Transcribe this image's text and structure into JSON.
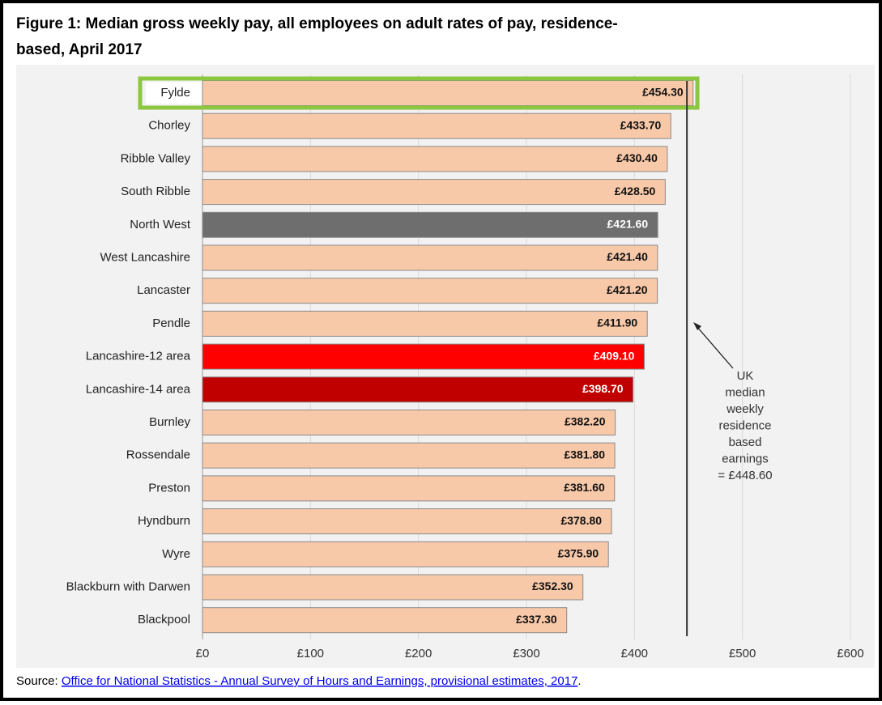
{
  "chart_data": {
    "type": "barh",
    "title": "Figure 1: Median gross weekly pay, all employees on adult rates of pay, residence-based, April 2017",
    "categories": [
      "Fylde",
      "Chorley",
      "Ribble Valley",
      "South Ribble",
      "North West",
      "West Lancashire",
      "Lancaster",
      "Pendle",
      "Lancashire-12 area",
      "Lancashire-14 area",
      "Burnley",
      "Rossendale",
      "Preston",
      "Hyndburn",
      "Wyre",
      "Blackburn with Darwen",
      "Blackpool"
    ],
    "values": [
      454.3,
      433.7,
      430.4,
      428.5,
      421.6,
      421.4,
      421.2,
      411.9,
      409.1,
      398.7,
      382.2,
      381.8,
      381.6,
      378.8,
      375.9,
      352.3,
      337.3
    ],
    "value_labels": [
      "£454.30",
      "£433.70",
      "£430.40",
      "£428.50",
      "£421.60",
      "£421.40",
      "£421.20",
      "£411.90",
      "£409.10",
      "£398.70",
      "£382.20",
      "£381.80",
      "£381.60",
      "£378.80",
      "£375.90",
      "£352.30",
      "£337.30"
    ],
    "colors": [
      "#f8c9a9",
      "#f8c9a9",
      "#f8c9a9",
      "#f8c9a9",
      "#6e6e6e",
      "#f8c9a9",
      "#f8c9a9",
      "#f8c9a9",
      "#ff0000",
      "#c00000",
      "#f8c9a9",
      "#f8c9a9",
      "#f8c9a9",
      "#f8c9a9",
      "#f8c9a9",
      "#f8c9a9",
      "#f8c9a9"
    ],
    "xlim": [
      0,
      600
    ],
    "xticks": [
      {
        "value": 0,
        "label": "£0"
      },
      {
        "value": 100,
        "label": "£100"
      },
      {
        "value": 200,
        "label": "£200"
      },
      {
        "value": 300,
        "label": "£300"
      },
      {
        "value": 400,
        "label": "£400"
      },
      {
        "value": 500,
        "label": "£500"
      },
      {
        "value": 600,
        "label": "£600"
      }
    ],
    "grid": true,
    "reference_line": {
      "value": 448.6,
      "annotation": [
        "UK",
        "median",
        "weekly",
        "residence",
        "based",
        "earnings",
        "= £448.60"
      ]
    },
    "source": {
      "prefix": "Source: ",
      "link": "Office for National Statistics - Annual Survey of Hours and Earnings, provisional estimates, 2017",
      "suffix": "."
    }
  }
}
